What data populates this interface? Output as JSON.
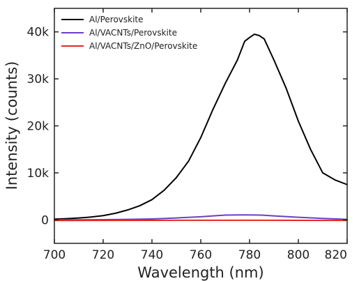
{
  "chart_data": {
    "type": "line",
    "xlabel": "Wavelength (nm)",
    "ylabel": "Intensity (counts)",
    "xlim": [
      700,
      820
    ],
    "ylim": [
      -5000,
      45000
    ],
    "x_ticks": [
      700,
      720,
      740,
      760,
      780,
      800,
      820
    ],
    "x_tick_labels": [
      "700",
      "720",
      "740",
      "760",
      "780",
      "800",
      "820"
    ],
    "y_ticks": [
      0,
      10000,
      20000,
      30000,
      40000
    ],
    "y_tick_labels": [
      "0",
      "10k",
      "20k",
      "30k",
      "40k"
    ],
    "grid": false,
    "legend_position": "top-left",
    "series": [
      {
        "name": "Al/Perovskite",
        "color": "#000000",
        "x": [
          700,
          705,
          710,
          715,
          720,
          725,
          730,
          735,
          740,
          745,
          750,
          755,
          760,
          765,
          770,
          775,
          778,
          780,
          782,
          784,
          786,
          790,
          795,
          800,
          805,
          810,
          815,
          820
        ],
        "y": [
          150,
          250,
          400,
          600,
          900,
          1400,
          2100,
          3000,
          4300,
          6300,
          9000,
          12500,
          17500,
          23500,
          29000,
          34000,
          38000,
          38800,
          39500,
          39200,
          38500,
          34000,
          28000,
          21000,
          15000,
          10000,
          8500,
          7500
        ]
      },
      {
        "name": "Al/VACNTs/Perovskite",
        "color": "#6a3fc2",
        "x": [
          700,
          710,
          720,
          730,
          740,
          750,
          760,
          765,
          770,
          775,
          780,
          785,
          790,
          795,
          800,
          810,
          820
        ],
        "y": [
          0,
          0,
          50,
          100,
          200,
          400,
          650,
          850,
          1000,
          1050,
          1050,
          1000,
          850,
          700,
          550,
          300,
          100
        ]
      },
      {
        "name": "Al/VACNTs/ZnO/Perovskite",
        "color": "#e8251f",
        "x": [
          700,
          720,
          740,
          760,
          780,
          800,
          820
        ],
        "y": [
          -150,
          -120,
          -100,
          -80,
          -80,
          -100,
          -120
        ]
      }
    ]
  }
}
